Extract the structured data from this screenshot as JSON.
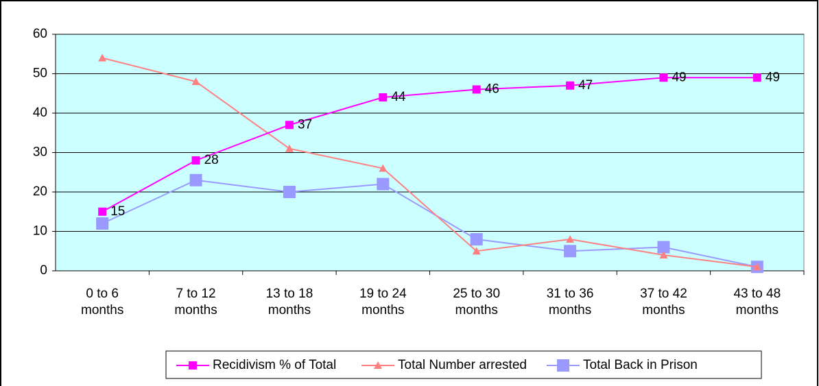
{
  "chart_data": {
    "type": "line",
    "categories": [
      "0 to 6 months",
      "7 to 12 months",
      "13 to 18 months",
      "19 to 24 months",
      "25 to 30 months",
      "31 to 36 months",
      "37 to 42 months",
      "43 to 48 months"
    ],
    "series": [
      {
        "name": "Recidivism % of Total",
        "color": "#ff00ff",
        "marker": "square",
        "data_labels": true,
        "values": [
          15,
          28,
          37,
          44,
          46,
          47,
          49,
          49
        ]
      },
      {
        "name": "Total Number arrested",
        "color": "#ff8080",
        "marker": "triangle",
        "data_labels": false,
        "values": [
          54,
          48,
          31,
          26,
          5,
          8,
          4,
          1
        ]
      },
      {
        "name": "Total Back in Prison",
        "color": "#9999ff",
        "marker": "big-square",
        "data_labels": false,
        "values": [
          12,
          23,
          20,
          22,
          8,
          5,
          6,
          1
        ]
      }
    ],
    "ylim": [
      0,
      60
    ],
    "yticks": [
      0,
      10,
      20,
      30,
      40,
      50,
      60
    ],
    "grid": true,
    "legend": "bottom"
  }
}
